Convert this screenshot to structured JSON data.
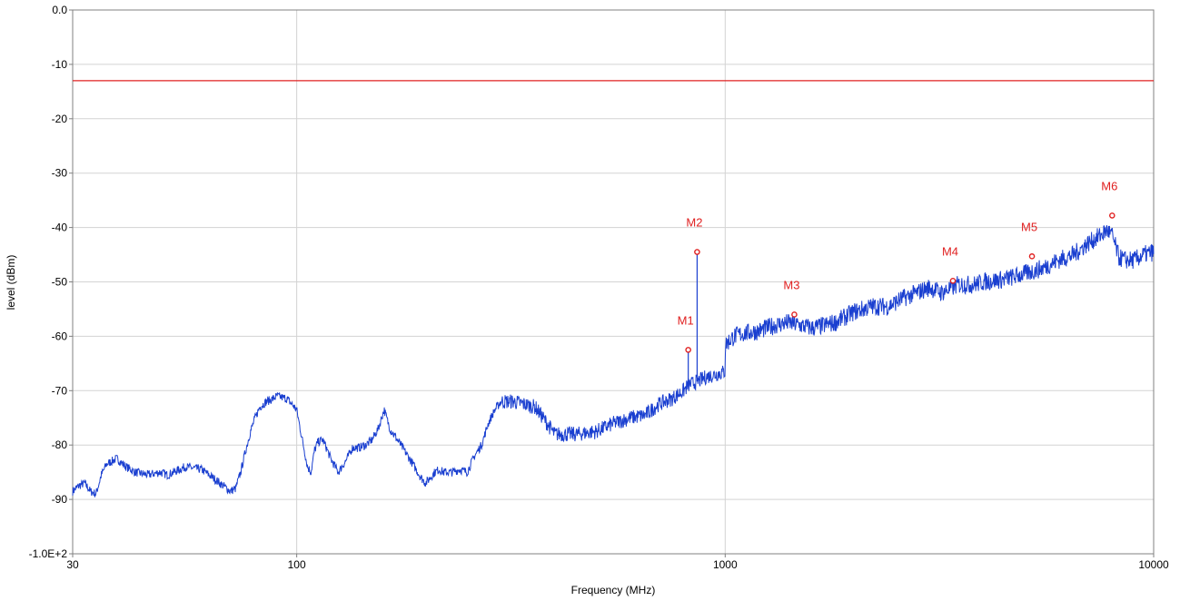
{
  "chart_data": {
    "type": "line",
    "title": "",
    "xlabel": "Frequency (MHz)",
    "ylabel": "level (dBm)",
    "x_scale": "log",
    "xlim": [
      30,
      10000
    ],
    "ylim": [
      -100,
      0
    ],
    "x_ticks": [
      {
        "value": 30,
        "label": "30"
      },
      {
        "value": 100,
        "label": "100"
      },
      {
        "value": 1000,
        "label": "1000"
      },
      {
        "value": 10000,
        "label": "10000"
      }
    ],
    "y_ticks": [
      {
        "value": 0,
        "label": "0.0"
      },
      {
        "value": -10,
        "label": "-10"
      },
      {
        "value": -20,
        "label": "-20"
      },
      {
        "value": -30,
        "label": "-30"
      },
      {
        "value": -40,
        "label": "-40"
      },
      {
        "value": -50,
        "label": "-50"
      },
      {
        "value": -60,
        "label": "-60"
      },
      {
        "value": -70,
        "label": "-70"
      },
      {
        "value": -80,
        "label": "-80"
      },
      {
        "value": -90,
        "label": "-90"
      },
      {
        "value": -100,
        "label": "-1.0E+2"
      }
    ],
    "grid": true,
    "limit_line": {
      "value": -13,
      "color": "#e02020"
    },
    "series": [
      {
        "color": "#1a3fd0",
        "x": [
          30,
          31,
          32,
          33,
          34,
          35,
          36,
          38,
          40,
          42,
          45,
          48,
          50,
          55,
          60,
          65,
          70,
          72,
          74,
          76,
          78,
          80,
          82,
          85,
          88,
          90,
          95,
          100,
          103,
          106,
          108,
          110,
          112,
          115,
          118,
          120,
          125,
          130,
          135,
          140,
          145,
          150,
          155,
          160,
          165,
          170,
          175,
          180,
          185,
          190,
          195,
          200,
          205,
          210,
          215,
          220,
          230,
          240,
          250,
          260,
          270,
          280,
          290,
          300,
          320,
          340,
          360,
          380,
          400,
          450,
          500,
          550,
          600,
          650,
          700,
          750,
          800,
          820,
          850,
          880,
          900,
          950,
          999,
          1001,
          1050,
          1100,
          1200,
          1300,
          1400,
          1500,
          1600,
          1700,
          1800,
          1900,
          2000,
          2100,
          2200,
          2400,
          2600,
          2800,
          3000,
          3200,
          3500,
          3800,
          4000,
          4500,
          5000,
          5500,
          6000,
          6500,
          7000,
          7500,
          7800,
          8000,
          8300,
          8600,
          9000,
          9500,
          10000
        ],
        "y": [
          -88.5,
          -87.5,
          -87,
          -88.5,
          -89,
          -85.5,
          -83.5,
          -82.5,
          -84,
          -85,
          -85.5,
          -85,
          -85.5,
          -84,
          -84.5,
          -86.5,
          -88.5,
          -88,
          -85,
          -81,
          -77.5,
          -75,
          -73,
          -72,
          -71.5,
          -71,
          -71.5,
          -73.5,
          -79,
          -84,
          -85,
          -81,
          -79.5,
          -79,
          -81,
          -82.5,
          -85,
          -83,
          -80.5,
          -80.5,
          -80,
          -79,
          -77,
          -73.5,
          -77,
          -78.5,
          -80,
          -81.5,
          -83,
          -84.5,
          -86,
          -87,
          -86,
          -85,
          -84.5,
          -85,
          -85,
          -84.5,
          -85,
          -82,
          -80,
          -76,
          -73.5,
          -72,
          -72,
          -72.5,
          -73,
          -75.5,
          -78,
          -78,
          -77.5,
          -76,
          -75,
          -74.5,
          -72.5,
          -71.5,
          -70,
          -69,
          -68.5,
          -68,
          -67.5,
          -67,
          -66.5,
          -61.5,
          -60,
          -59.5,
          -59,
          -58,
          -57.5,
          -58,
          -58.5,
          -58,
          -57.5,
          -56.5,
          -55.5,
          -55,
          -54.5,
          -54.5,
          -53,
          -52,
          -51,
          -52,
          -50.5,
          -50.5,
          -50,
          -49.5,
          -48.5,
          -47.5,
          -46,
          -45,
          -43,
          -41.5,
          -40.5,
          -41.5,
          -45.5,
          -46,
          -46,
          -45,
          -44.5
        ]
      }
    ],
    "markers": [
      {
        "label": "M1",
        "x": 820,
        "y": -62.5
      },
      {
        "label": "M2",
        "x": 860,
        "y": -44.5
      },
      {
        "label": "M3",
        "x": 1450,
        "y": -56
      },
      {
        "label": "M4",
        "x": 3400,
        "y": -49.8
      },
      {
        "label": "M5",
        "x": 5200,
        "y": -45.3
      },
      {
        "label": "M6",
        "x": 8000,
        "y": -37.8
      }
    ],
    "marker_color": "#e02020"
  }
}
